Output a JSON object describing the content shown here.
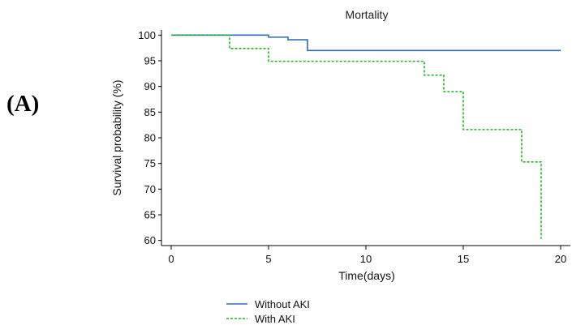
{
  "panel_label": "(A)",
  "chart_data": {
    "type": "line",
    "title": "Mortality",
    "xlabel": "Time(days)",
    "ylabel": "Survival probability (%)",
    "xlim": [
      -0.5,
      20.5
    ],
    "ylim": [
      59,
      101
    ],
    "xticks": [
      0,
      5,
      10,
      15,
      20
    ],
    "yticks": [
      60,
      65,
      70,
      75,
      80,
      85,
      90,
      95,
      100
    ],
    "step": true,
    "grid": false,
    "legend_position": "bottom-center",
    "series": [
      {
        "name": "Without AKI",
        "color": "#2e6db4",
        "style": "solid",
        "x": [
          0,
          5,
          6,
          7,
          20
        ],
        "y": [
          100,
          99.6,
          99.1,
          97.0,
          97.0
        ]
      },
      {
        "name": "With AKI",
        "color": "#22b422",
        "style": "dashed",
        "x": [
          0,
          3,
          5,
          13,
          14,
          15,
          18,
          19
        ],
        "y": [
          100,
          97.4,
          94.9,
          92.2,
          89.0,
          81.6,
          75.3,
          60.3
        ]
      }
    ]
  }
}
